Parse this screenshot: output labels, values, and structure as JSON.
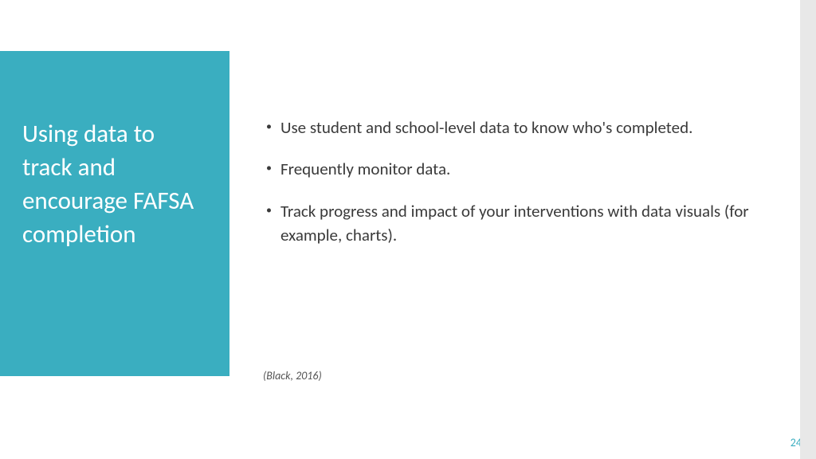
{
  "slide": {
    "title": "Using data to track and encourage FAFSA completion",
    "bullets": [
      "Use student and school-level data to know who's completed.",
      "Frequently monitor data.",
      "Track progress and impact of your interventions with data visuals (for example, charts)."
    ],
    "citation": "(Black, 2016)",
    "page_number": "24"
  },
  "colors": {
    "accent": "#3aaec0",
    "text": "#3a3a3a",
    "white": "#ffffff",
    "citation": "#555555",
    "scroll_bg": "#e8e8e8"
  },
  "typography": {
    "title_fontsize": 31,
    "body_fontsize": 21,
    "citation_fontsize": 14,
    "pagenum_fontsize": 14
  }
}
